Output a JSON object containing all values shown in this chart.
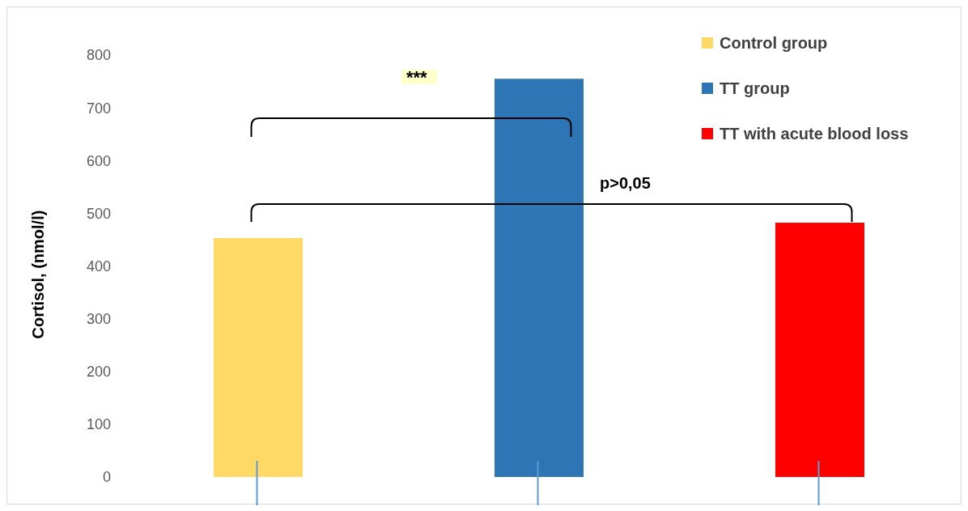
{
  "chart_data": {
    "type": "bar",
    "ylabel": "Cortisol, (nmol/l)",
    "categories": [
      null,
      null,
      null
    ],
    "series": [
      {
        "name": "Control group",
        "color": "#ffd966",
        "values": [
          453,
          null,
          null
        ]
      },
      {
        "name": "TT group",
        "color": "#2e75b6",
        "values": [
          null,
          755,
          null
        ]
      },
      {
        "name": "TT with acute blood loss",
        "color": "#ff0000",
        "values": [
          null,
          null,
          482
        ]
      }
    ],
    "ylim": [
      0,
      800
    ],
    "yticks": [
      0,
      100,
      200,
      300,
      400,
      500,
      600,
      700,
      800
    ],
    "grid": false,
    "stacked": true,
    "legend": "top right",
    "annotations": [
      "***",
      "p>0,05"
    ]
  }
}
